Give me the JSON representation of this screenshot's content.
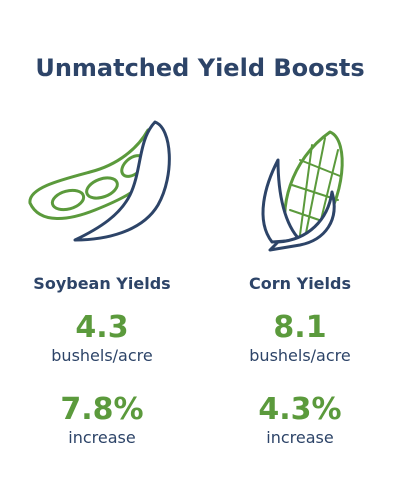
{
  "header": {
    "title": "Unmatched Yield Boosts"
  },
  "columns": [
    {
      "heading": "Soybean Yields",
      "stats": [
        {
          "value": "4.3",
          "label": "bushels/acre"
        },
        {
          "value": "7.8%",
          "label": "increase"
        }
      ]
    },
    {
      "heading": "Corn Yields",
      "stats": [
        {
          "value": "8.1",
          "label": "bushels/acre"
        },
        {
          "value": "4.3%",
          "label": "increase"
        }
      ]
    }
  ]
}
